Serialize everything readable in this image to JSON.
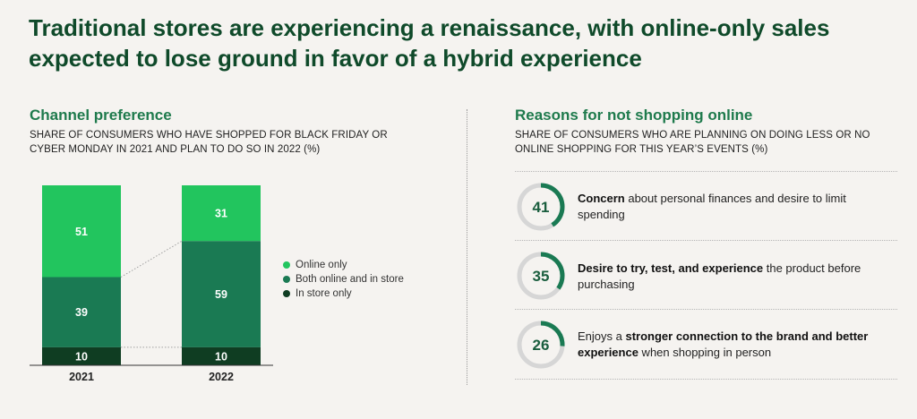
{
  "title": "Traditional stores are experiencing a renaissance, with online-only sales expected to lose ground in favor of a hybrid experience",
  "left": {
    "title": "Channel preference",
    "subtitle": "Share of consumers who have shopped for Black Friday or Cyber Monday in 2021 and plan to do so in 2022 (%)"
  },
  "right": {
    "title": "Reasons for not shopping online",
    "subtitle": "Share of consumers who are planning on doing less or no online shopping for this year’s events (%)",
    "reasons": [
      {
        "value": 41,
        "parts": [
          {
            "text": "Concern",
            "bold": true
          },
          {
            "text": " about personal finances and desire to limit spending",
            "bold": false
          }
        ]
      },
      {
        "value": 35,
        "parts": [
          {
            "text": "Desire to try, test, and experience",
            "bold": true
          },
          {
            "text": " the product before purchasing",
            "bold": false
          }
        ]
      },
      {
        "value": 26,
        "parts": [
          {
            "text": "Enjoys a ",
            "bold": false
          },
          {
            "text": "stronger connection to the brand and better experience",
            "bold": true
          },
          {
            "text": " when shopping in person",
            "bold": false
          }
        ]
      }
    ]
  },
  "colors": {
    "online": "#22c55e",
    "both": "#1a7a53",
    "store": "#0f3d22",
    "ring_track": "#d6d6d6",
    "ring_fill": "#1a7a53"
  },
  "chart_data": [
    {
      "type": "bar",
      "stacked": true,
      "title": "Channel preference",
      "categories": [
        "2021",
        "2022"
      ],
      "series": [
        {
          "name": "Online only",
          "values": [
            51,
            31
          ]
        },
        {
          "name": "Both online and in store",
          "values": [
            39,
            59
          ]
        },
        {
          "name": "In store only",
          "values": [
            10,
            10
          ]
        }
      ],
      "ylim": [
        0,
        100
      ],
      "legend": "right"
    },
    {
      "type": "bar",
      "title": "Reasons for not shopping online",
      "categories": [
        "Concern about personal finances and desire to limit spending",
        "Desire to try, test, and experience the product before purchasing",
        "Enjoys a stronger connection to the brand and better experience when shopping in person"
      ],
      "values": [
        41,
        35,
        26
      ],
      "ylim": [
        0,
        100
      ]
    }
  ]
}
